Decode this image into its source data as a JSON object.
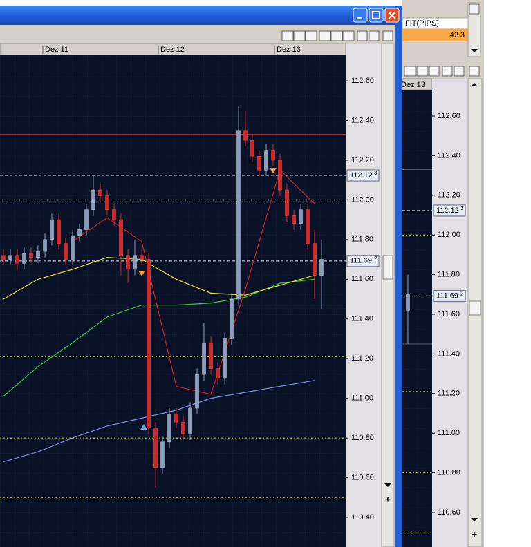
{
  "main_window": {
    "dates": [
      "Dez 11",
      "Dez 12",
      "Dez 13"
    ],
    "price_ticks": [
      {
        "value": 112.6,
        "label": "112.60"
      },
      {
        "value": 112.4,
        "label": "112.40"
      },
      {
        "value": 112.2,
        "label": "112.20"
      },
      {
        "value": 112.0,
        "label": "112.00"
      },
      {
        "value": 111.8,
        "label": "111.80"
      },
      {
        "value": 111.6,
        "label": "111.60"
      },
      {
        "value": 111.4,
        "label": "111.40"
      },
      {
        "value": 111.2,
        "label": "111.20"
      },
      {
        "value": 111.0,
        "label": "111.00"
      },
      {
        "value": 110.8,
        "label": "110.80"
      },
      {
        "value": 110.6,
        "label": "110.60"
      },
      {
        "value": 110.4,
        "label": "110.40"
      }
    ],
    "ask": {
      "value": 112.123,
      "label": "112.12",
      "pip": "3"
    },
    "bid": {
      "value": 111.692,
      "label": "111.69",
      "pip": "2"
    },
    "levels": [
      {
        "value": 112.33,
        "color": "#c0282c",
        "style": "solid"
      },
      {
        "value": 112.0,
        "color": "#c8c820",
        "style": "dotted"
      },
      {
        "value": 111.45,
        "color": "#5a6070",
        "style": "solid"
      },
      {
        "value": 111.21,
        "color": "#c8c820",
        "style": "dotted"
      },
      {
        "value": 110.8,
        "color": "#c8c820",
        "style": "dotted"
      },
      {
        "value": 110.5,
        "color": "#c8c820",
        "style": "dotted"
      }
    ],
    "candles": [
      [
        111.72,
        111.75,
        111.67,
        111.7
      ],
      [
        111.7,
        111.75,
        111.67,
        111.72
      ],
      [
        111.72,
        111.75,
        111.65,
        111.68
      ],
      [
        111.68,
        111.76,
        111.65,
        111.73
      ],
      [
        111.73,
        111.76,
        111.68,
        111.71
      ],
      [
        111.71,
        111.77,
        111.68,
        111.74
      ],
      [
        111.74,
        111.83,
        111.71,
        111.8
      ],
      [
        111.8,
        111.93,
        111.77,
        111.9
      ],
      [
        111.9,
        111.93,
        111.75,
        111.78
      ],
      [
        111.78,
        111.81,
        111.67,
        111.7
      ],
      [
        111.7,
        111.85,
        111.67,
        111.82
      ],
      [
        111.82,
        111.88,
        111.79,
        111.85
      ],
      [
        111.85,
        111.98,
        111.82,
        111.95
      ],
      [
        111.95,
        112.12,
        111.92,
        112.05
      ],
      [
        112.05,
        112.08,
        111.99,
        112.02
      ],
      [
        112.02,
        112.05,
        111.92,
        111.95
      ],
      [
        111.95,
        111.98,
        111.87,
        111.9
      ],
      [
        111.9,
        111.93,
        111.62,
        111.72
      ],
      [
        111.72,
        111.75,
        111.58,
        111.65
      ],
      [
        111.65,
        111.8,
        111.62,
        111.72
      ],
      [
        111.72,
        111.75,
        111.67,
        111.7
      ],
      [
        111.7,
        111.73,
        110.82,
        110.85
      ],
      [
        110.85,
        110.88,
        110.55,
        110.65
      ],
      [
        110.65,
        110.81,
        110.62,
        110.78
      ],
      [
        110.78,
        110.95,
        110.75,
        110.92
      ],
      [
        110.92,
        110.95,
        110.85,
        110.88
      ],
      [
        110.88,
        110.91,
        110.79,
        110.82
      ],
      [
        110.82,
        110.98,
        110.79,
        110.95
      ],
      [
        110.95,
        111.15,
        110.92,
        111.12
      ],
      [
        111.12,
        111.38,
        111.09,
        111.28
      ],
      [
        111.28,
        111.31,
        111.12,
        111.15
      ],
      [
        111.15,
        111.18,
        111.07,
        111.1
      ],
      [
        111.1,
        111.33,
        111.07,
        111.3
      ],
      [
        111.3,
        111.53,
        111.27,
        111.5
      ],
      [
        111.5,
        112.47,
        111.47,
        112.35
      ],
      [
        112.35,
        112.45,
        112.27,
        112.3
      ],
      [
        112.3,
        112.33,
        112.19,
        112.22
      ],
      [
        112.22,
        112.25,
        112.12,
        112.15
      ],
      [
        112.15,
        112.28,
        112.12,
        112.25
      ],
      [
        112.25,
        112.28,
        112.17,
        112.2
      ],
      [
        112.2,
        112.23,
        112.02,
        112.05
      ],
      [
        112.05,
        112.08,
        111.89,
        111.92
      ],
      [
        111.92,
        111.95,
        111.85,
        111.88
      ],
      [
        111.88,
        111.98,
        111.85,
        111.95
      ],
      [
        111.95,
        111.98,
        111.75,
        111.78
      ],
      [
        111.78,
        111.85,
        111.5,
        111.62
      ],
      [
        111.62,
        111.8,
        111.45,
        111.7
      ]
    ],
    "indicators": [
      {
        "color": "#3cc83c",
        "values": [
          111.01,
          111.16,
          111.28,
          111.41,
          111.47,
          111.47,
          111.48,
          111.51,
          111.58,
          111.6
        ]
      },
      {
        "color": "#e8e830",
        "values": [
          111.5,
          111.6,
          111.65,
          111.71,
          111.7,
          111.6,
          111.53,
          111.52,
          111.57,
          111.62
        ]
      },
      {
        "color": "#8090e0",
        "values": [
          110.68,
          110.73,
          110.8,
          110.86,
          110.9,
          110.94,
          111.0,
          111.03,
          111.06,
          111.09
        ]
      },
      {
        "color": "#d02020",
        "values": [
          null,
          null,
          111.79,
          111.91,
          111.79,
          111.06,
          111.02,
          111.55,
          112.15,
          111.98
        ]
      }
    ]
  },
  "side_panel": {
    "column_header": "FIT(PIPS)",
    "value": "42.3"
  },
  "side_chart": {
    "date": "Dez 13",
    "price_ticks": [
      {
        "value": 112.6,
        "label": "112.60"
      },
      {
        "value": 112.4,
        "label": "112.40"
      },
      {
        "value": 112.2,
        "label": "112.20"
      },
      {
        "value": 112.0,
        "label": "112.00"
      },
      {
        "value": 111.8,
        "label": "111.80"
      },
      {
        "value": 111.6,
        "label": "111.60"
      },
      {
        "value": 111.4,
        "label": "111.40"
      },
      {
        "value": 111.2,
        "label": "111.20"
      },
      {
        "value": 111.0,
        "label": "111.00"
      },
      {
        "value": 110.8,
        "label": "110.80"
      },
      {
        "value": 110.6,
        "label": "110.60"
      }
    ]
  }
}
